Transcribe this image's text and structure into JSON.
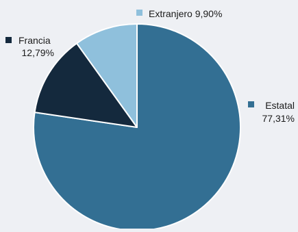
{
  "chart_data": {
    "type": "pie",
    "title": "",
    "labels": [
      "Estatal",
      "Francia",
      "Extranjero"
    ],
    "values": [
      77.31,
      12.79,
      9.9
    ],
    "display_values": [
      "77,31%",
      "12,79%",
      "9,90%"
    ],
    "colors": [
      "#336f93",
      "#14293d",
      "#8fc0dc"
    ],
    "legend_placement": "labels-beside-slices",
    "start_angle_deg": 0,
    "direction": "clockwise"
  }
}
